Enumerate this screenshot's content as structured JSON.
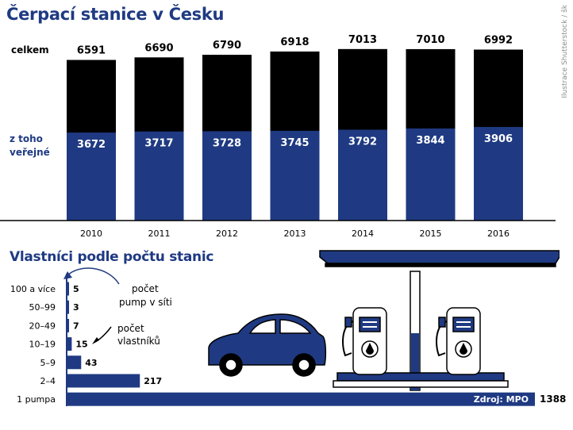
{
  "title": "Čerpací stanice v Česku",
  "credit": "Ilustrace Shutterstock / šk",
  "colors": {
    "navy": "#1f3a82",
    "black": "#000000"
  },
  "chart_data": [
    {
      "type": "bar",
      "categories": [
        "2010",
        "2011",
        "2012",
        "2013",
        "2014",
        "2015",
        "2016"
      ],
      "series": [
        {
          "name": "celkem",
          "values": [
            6591,
            6690,
            6790,
            6918,
            7013,
            7010,
            6992
          ]
        },
        {
          "name": "z toho veřejné",
          "values": [
            3672,
            3717,
            3728,
            3745,
            3792,
            3844,
            3906
          ]
        }
      ],
      "legend_labels": {
        "total": "celkem",
        "public_line1": "z toho",
        "public_line2": "veřejné"
      }
    },
    {
      "type": "bar",
      "orientation": "horizontal",
      "title": "Vlastníci podle počtu stanic",
      "categories": [
        "100 a více",
        "50–99",
        "20–49",
        "10–19",
        "5–9",
        "2–4",
        "1 pumpa"
      ],
      "values": [
        5,
        3,
        7,
        15,
        43,
        217,
        1388
      ],
      "annotations": {
        "pumps_line1": "počet",
        "pumps_line2": "pump v síti",
        "owners_line1": "počet",
        "owners_line2": "vlastníků"
      },
      "source": "Zdroj: MPO"
    }
  ]
}
